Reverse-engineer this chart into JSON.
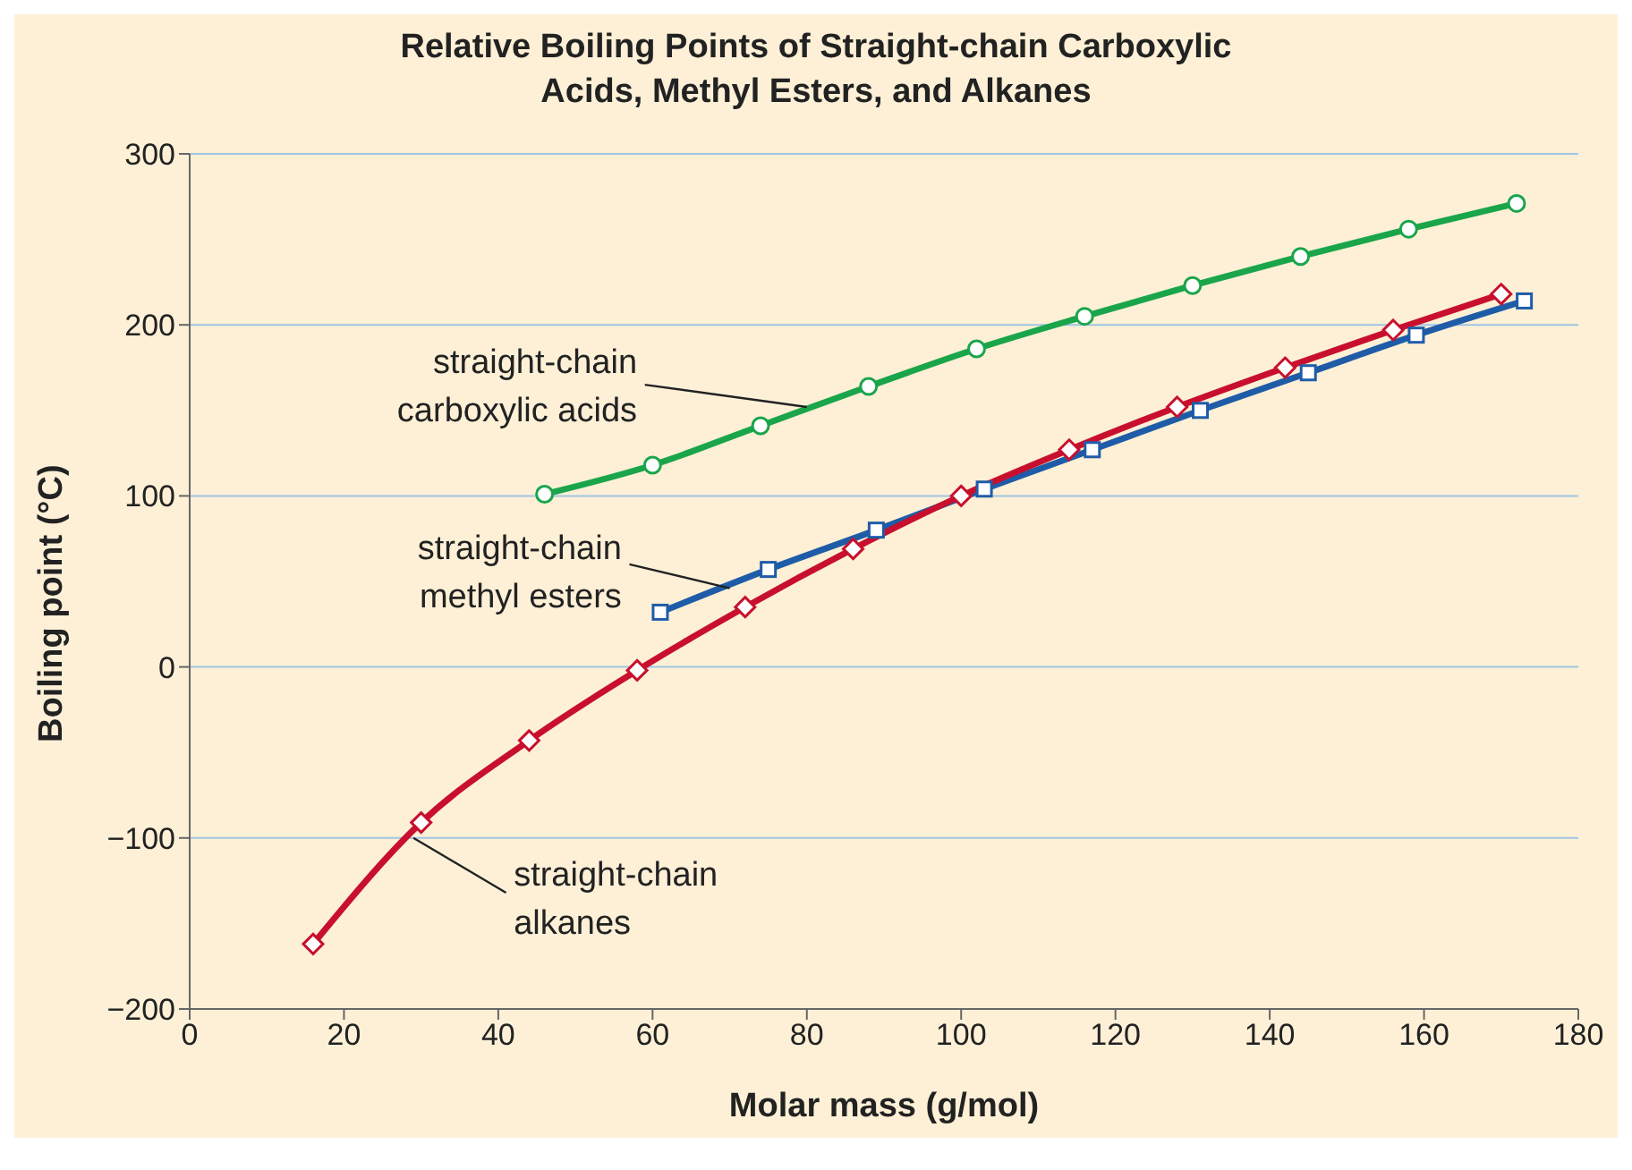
{
  "chart_data": {
    "type": "line",
    "title": "Relative Boiling Points of Straight-chain Carboxylic Acids, Methyl Esters, and Alkanes",
    "xlabel": "Molar mass (g/mol)",
    "ylabel": "Boiling point (°C)",
    "xlim": [
      0,
      180
    ],
    "xticks": [
      0,
      20,
      40,
      60,
      80,
      100,
      120,
      140,
      160,
      180
    ],
    "ylim": [
      -200,
      300
    ],
    "yticks": [
      -200,
      -100,
      0,
      100,
      200,
      300
    ],
    "grid": "y",
    "line_style": "solid",
    "series": [
      {
        "name": "straight-chain carboxylic acids",
        "color": "#1aa54b",
        "marker": "circle",
        "x": [
          46,
          60,
          74,
          88,
          102,
          116,
          130,
          144,
          158,
          172
        ],
        "values": [
          101,
          118,
          141,
          164,
          186,
          205,
          223,
          240,
          256,
          271
        ]
      },
      {
        "name": "straight-chain methyl esters",
        "color": "#1f5ca8",
        "marker": "square",
        "x": [
          61,
          75,
          89,
          103,
          117,
          131,
          145,
          159,
          173
        ],
        "values": [
          32,
          57,
          80,
          104,
          127,
          150,
          172,
          194,
          214
        ]
      },
      {
        "name": "straight-chain alkanes",
        "color": "#c8102e",
        "marker": "diamond",
        "x": [
          16,
          30,
          44,
          58,
          72,
          86,
          100,
          114,
          128,
          142,
          156,
          170
        ],
        "values": [
          -162,
          -91,
          -43,
          -2,
          35,
          69,
          100,
          127,
          152,
          175,
          197,
          218
        ]
      }
    ]
  }
}
